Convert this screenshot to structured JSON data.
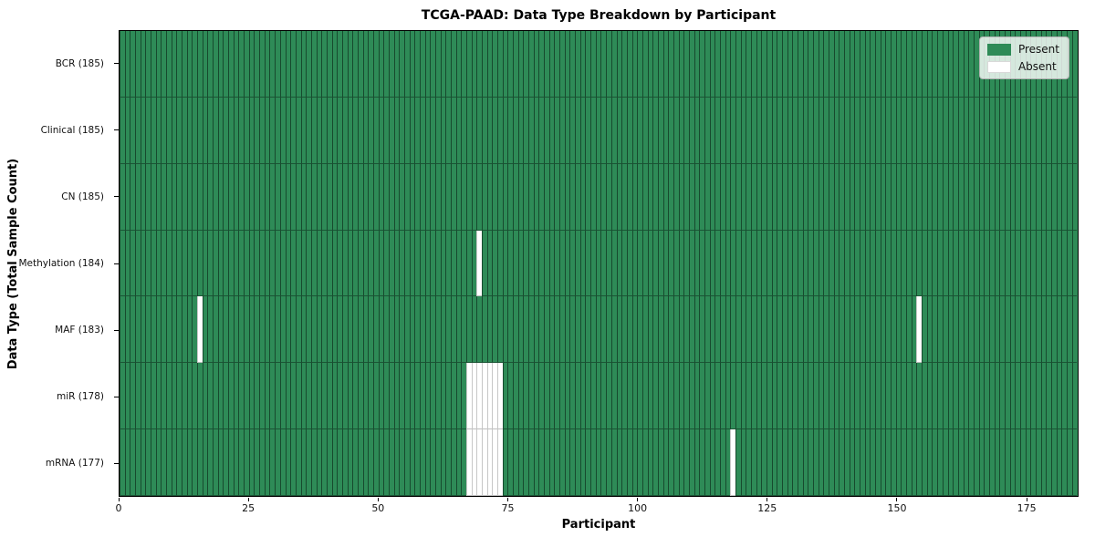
{
  "chart_data": {
    "type": "heatmap",
    "title": "TCGA-PAAD: Data Type Breakdown by Participant",
    "xlabel": "Participant",
    "ylabel": "Data Type (Total Sample Count)",
    "n_participants": 185,
    "x_ticks": [
      0,
      25,
      50,
      75,
      100,
      125,
      150,
      175
    ],
    "grid": false,
    "legend": {
      "position": "upper right",
      "entries": [
        {
          "label": "Present",
          "color": "#2e8b57"
        },
        {
          "label": "Absent",
          "color": "#ffffff"
        }
      ]
    },
    "colors": {
      "present_fill": "#2e8b57",
      "present_edge": "#123b26",
      "absent_fill": "#ffffff",
      "absent_edge": "#c7c7c7",
      "plot_border": "#000000"
    },
    "rows": [
      {
        "data_type": "BCR",
        "label": "BCR (185)",
        "present_count": 185,
        "absent_participants": []
      },
      {
        "data_type": "Clinical",
        "label": "Clinical (185)",
        "present_count": 185,
        "absent_participants": []
      },
      {
        "data_type": "CN",
        "label": "CN (185)",
        "present_count": 185,
        "absent_participants": []
      },
      {
        "data_type": "Methylation",
        "label": "Methylation (184)",
        "present_count": 184,
        "absent_participants": [
          69
        ]
      },
      {
        "data_type": "MAF",
        "label": "MAF (183)",
        "present_count": 183,
        "absent_participants": [
          15,
          154
        ]
      },
      {
        "data_type": "miR",
        "label": "miR (178)",
        "present_count": 178,
        "absent_participants": [
          67,
          68,
          69,
          70,
          71,
          72,
          73
        ]
      },
      {
        "data_type": "mRNA",
        "label": "mRNA (177)",
        "present_count": 177,
        "absent_participants": [
          67,
          68,
          69,
          70,
          71,
          72,
          73,
          118
        ]
      }
    ]
  }
}
